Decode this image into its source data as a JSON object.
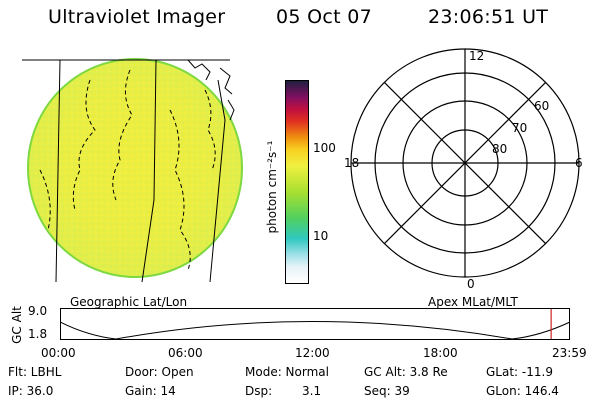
{
  "header": {
    "title": "Ultraviolet Imager",
    "date": "05 Oct 07",
    "time": "23:06:51 UT"
  },
  "colorbar": {
    "label": "photon cm⁻²s⁻¹",
    "ticks": [
      "100",
      "10"
    ]
  },
  "left_panel": {
    "caption": "Geographic Lat/Lon"
  },
  "polar_plot": {
    "caption": "Apex MLat/MLT",
    "mlt_labels": {
      "top": "12",
      "left": "18",
      "right": "6",
      "bottom": "0"
    },
    "mlat_labels": [
      "60",
      "70",
      "80"
    ]
  },
  "altitude_plot": {
    "ylabel": "GC Alt",
    "yticks": [
      "9.0",
      "1.8"
    ],
    "xticks": [
      "00:00",
      "06:00",
      "12:00",
      "18:00",
      "23:59"
    ],
    "marker_color": "#cc2222",
    "marker_fraction": 0.963
  },
  "info": {
    "flt": "Flt: LBHL",
    "ip": "IP: 36.0",
    "door": "Door: Open",
    "gain": "Gain: 14",
    "mode": "Mode: Normal",
    "dsp_label": "Dsp:",
    "dsp_value": "3.1",
    "gc_alt": "GC Alt: 3.8 Re",
    "seq": "Seq: 39",
    "glat": "GLat: -11.9",
    "glon": "GLon: 146.4"
  }
}
